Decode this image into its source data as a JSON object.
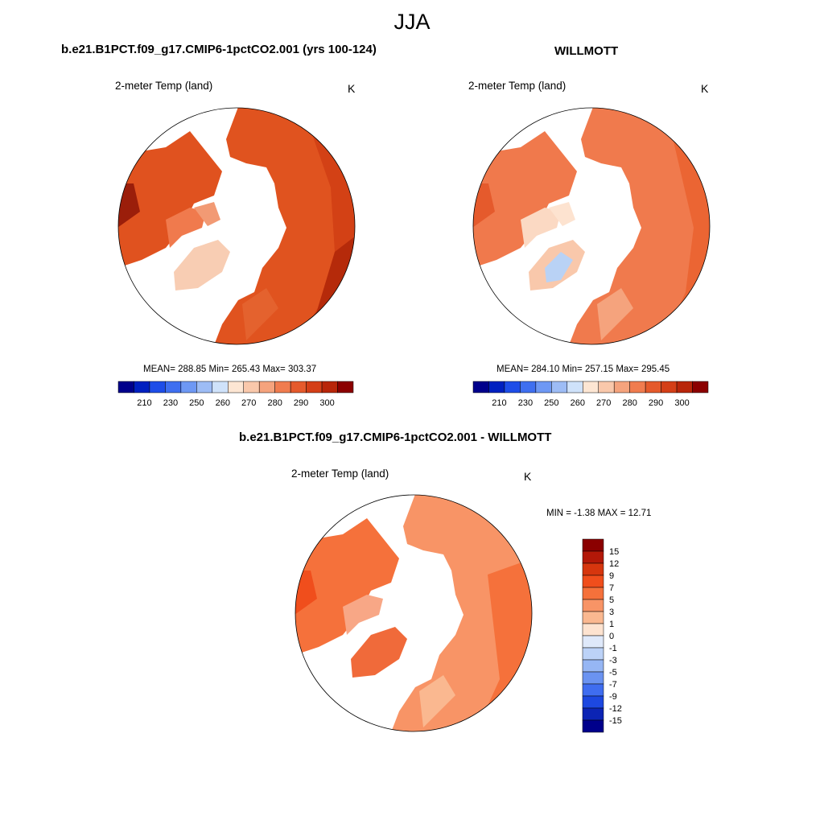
{
  "figure": {
    "season": "JJA"
  },
  "panels": [
    {
      "id": "model",
      "title": "b.e21.B1PCT.f09_g17.CMIP6-1pctCO2.001 (yrs 100-124)",
      "variable": "2-meter Temp (land)",
      "units": "K",
      "stats": "MEAN= 288.85  Min= 265.43  Max= 303.37"
    },
    {
      "id": "obs",
      "title": "WILLMOTT",
      "variable": "2-meter Temp (land)",
      "units": "K",
      "stats": "MEAN= 284.10  Min= 257.15  Max= 295.45"
    },
    {
      "id": "diff",
      "title": "b.e21.B1PCT.f09_g17.CMIP6-1pctCO2.001 - WILLMOTT",
      "variable": "2-meter Temp (land)",
      "units": "K",
      "stats": "MIN =  -1.38 MAX =  12.71"
    }
  ],
  "colorbars": {
    "absolute": {
      "tick_labels": [
        "210",
        "230",
        "250",
        "260",
        "270",
        "280",
        "290",
        "300"
      ],
      "colors": [
        "#00008b",
        "#0020c0",
        "#1e4de8",
        "#3f6ff0",
        "#6e98f4",
        "#9dbcf5",
        "#cfe2fa",
        "#fde6d3",
        "#f9c8ab",
        "#f5a37d",
        "#f07c4f",
        "#e55a2c",
        "#d43f17",
        "#b8260a",
        "#8b0000"
      ]
    },
    "difference": {
      "tick_labels": [
        "15",
        "12",
        "9",
        "7",
        "5",
        "3",
        "1",
        "0",
        "-1",
        "-3",
        "-5",
        "-7",
        "-9",
        "-12",
        "-15"
      ],
      "colors": [
        "#8b0000",
        "#b31808",
        "#d6360e",
        "#f04e1c",
        "#f5713b",
        "#f89466",
        "#fab890",
        "#fde3d0",
        "#dfe9fa",
        "#bcd2f7",
        "#96b6f4",
        "#6b93f1",
        "#3f6df0",
        "#1d48e0",
        "#0c24b4",
        "#00008b"
      ]
    }
  }
}
